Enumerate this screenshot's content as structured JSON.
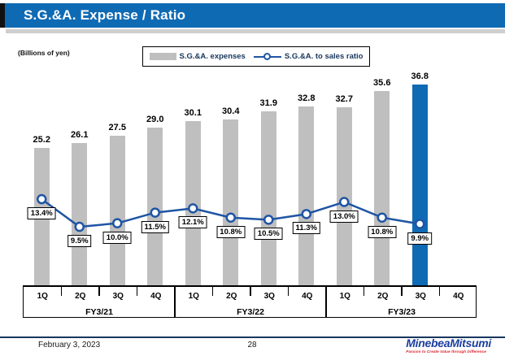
{
  "title": "S.G.&A. Expense / Ratio",
  "units_label": "(Billions of yen)",
  "legend": {
    "bars_label": "S.G.&A. expenses",
    "line_label": "S.G.&A. to sales ratio"
  },
  "footer": {
    "date": "February 3, 2023",
    "page": "28",
    "logo": "MinebeaMitsumi",
    "tagline": "Passion to Create Value through Difference"
  },
  "colors": {
    "title_bg": "#0F6AB4",
    "bar_gray": "#BFBFBF",
    "bar_highlight": "#0F6AB4",
    "line_blue": "#1F55A4",
    "footer_line": "#17365D",
    "logo_blue": "#1C3FA0",
    "tagline_red": "#D5232E"
  },
  "chart_data": {
    "type": "bar+line",
    "title": "S.G.&A. Expense / Ratio",
    "ylabel": "Billions of yen",
    "y2label": "S.G.&A. to sales ratio (%)",
    "ylim": [
      0,
      40
    ],
    "grid": false,
    "legend_position": "top",
    "fiscal_years": [
      "FY3/21",
      "FY3/22",
      "FY3/23"
    ],
    "quarters": [
      "1Q",
      "2Q",
      "3Q",
      "4Q"
    ],
    "categories": [
      "FY3/21 1Q",
      "FY3/21 2Q",
      "FY3/21 3Q",
      "FY3/21 4Q",
      "FY3/22 1Q",
      "FY3/22 2Q",
      "FY3/22 3Q",
      "FY3/22 4Q",
      "FY3/23 1Q",
      "FY3/23 2Q",
      "FY3/23 3Q",
      "FY3/23 4Q"
    ],
    "series": [
      {
        "name": "S.G.&A. expenses",
        "type": "bar",
        "values": [
          25.2,
          26.1,
          27.5,
          29.0,
          30.1,
          30.4,
          31.9,
          32.8,
          32.7,
          35.6,
          36.8,
          null
        ]
      },
      {
        "name": "S.G.&A. to sales ratio",
        "type": "line",
        "unit": "%",
        "values": [
          13.4,
          9.5,
          10.0,
          11.5,
          12.1,
          10.8,
          10.5,
          11.3,
          13.0,
          10.8,
          9.9,
          null
        ]
      }
    ],
    "highlight_index": 10
  }
}
